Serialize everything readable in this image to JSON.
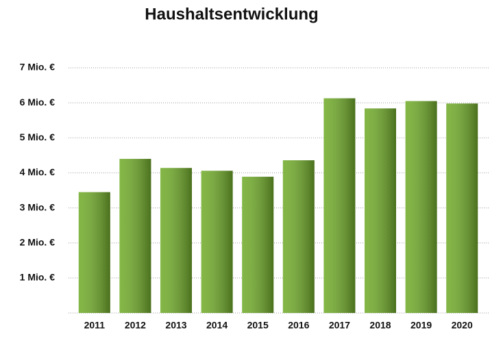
{
  "chart_data": {
    "type": "bar",
    "title": "Haushaltsentwicklung",
    "categories": [
      "2011",
      "2012",
      "2013",
      "2014",
      "2015",
      "2016",
      "2017",
      "2018",
      "2019",
      "2020"
    ],
    "values": [
      3.45,
      4.4,
      4.14,
      4.06,
      3.89,
      4.36,
      6.13,
      5.84,
      6.05,
      5.98
    ],
    "color": "#72ac2c",
    "ylim": [
      0,
      7
    ],
    "yticks": [
      {
        "value": 1,
        "label": "1 Mio. €"
      },
      {
        "value": 2,
        "label": "2 Mio. €"
      },
      {
        "value": 3,
        "label": "3 Mio. €"
      },
      {
        "value": 4,
        "label": "4 Mio. €"
      },
      {
        "value": 5,
        "label": "5 Mio. €"
      },
      {
        "value": 6,
        "label": "6 Mio. €"
      },
      {
        "value": 7,
        "label": "7 Mio. €"
      }
    ],
    "grid": true
  }
}
